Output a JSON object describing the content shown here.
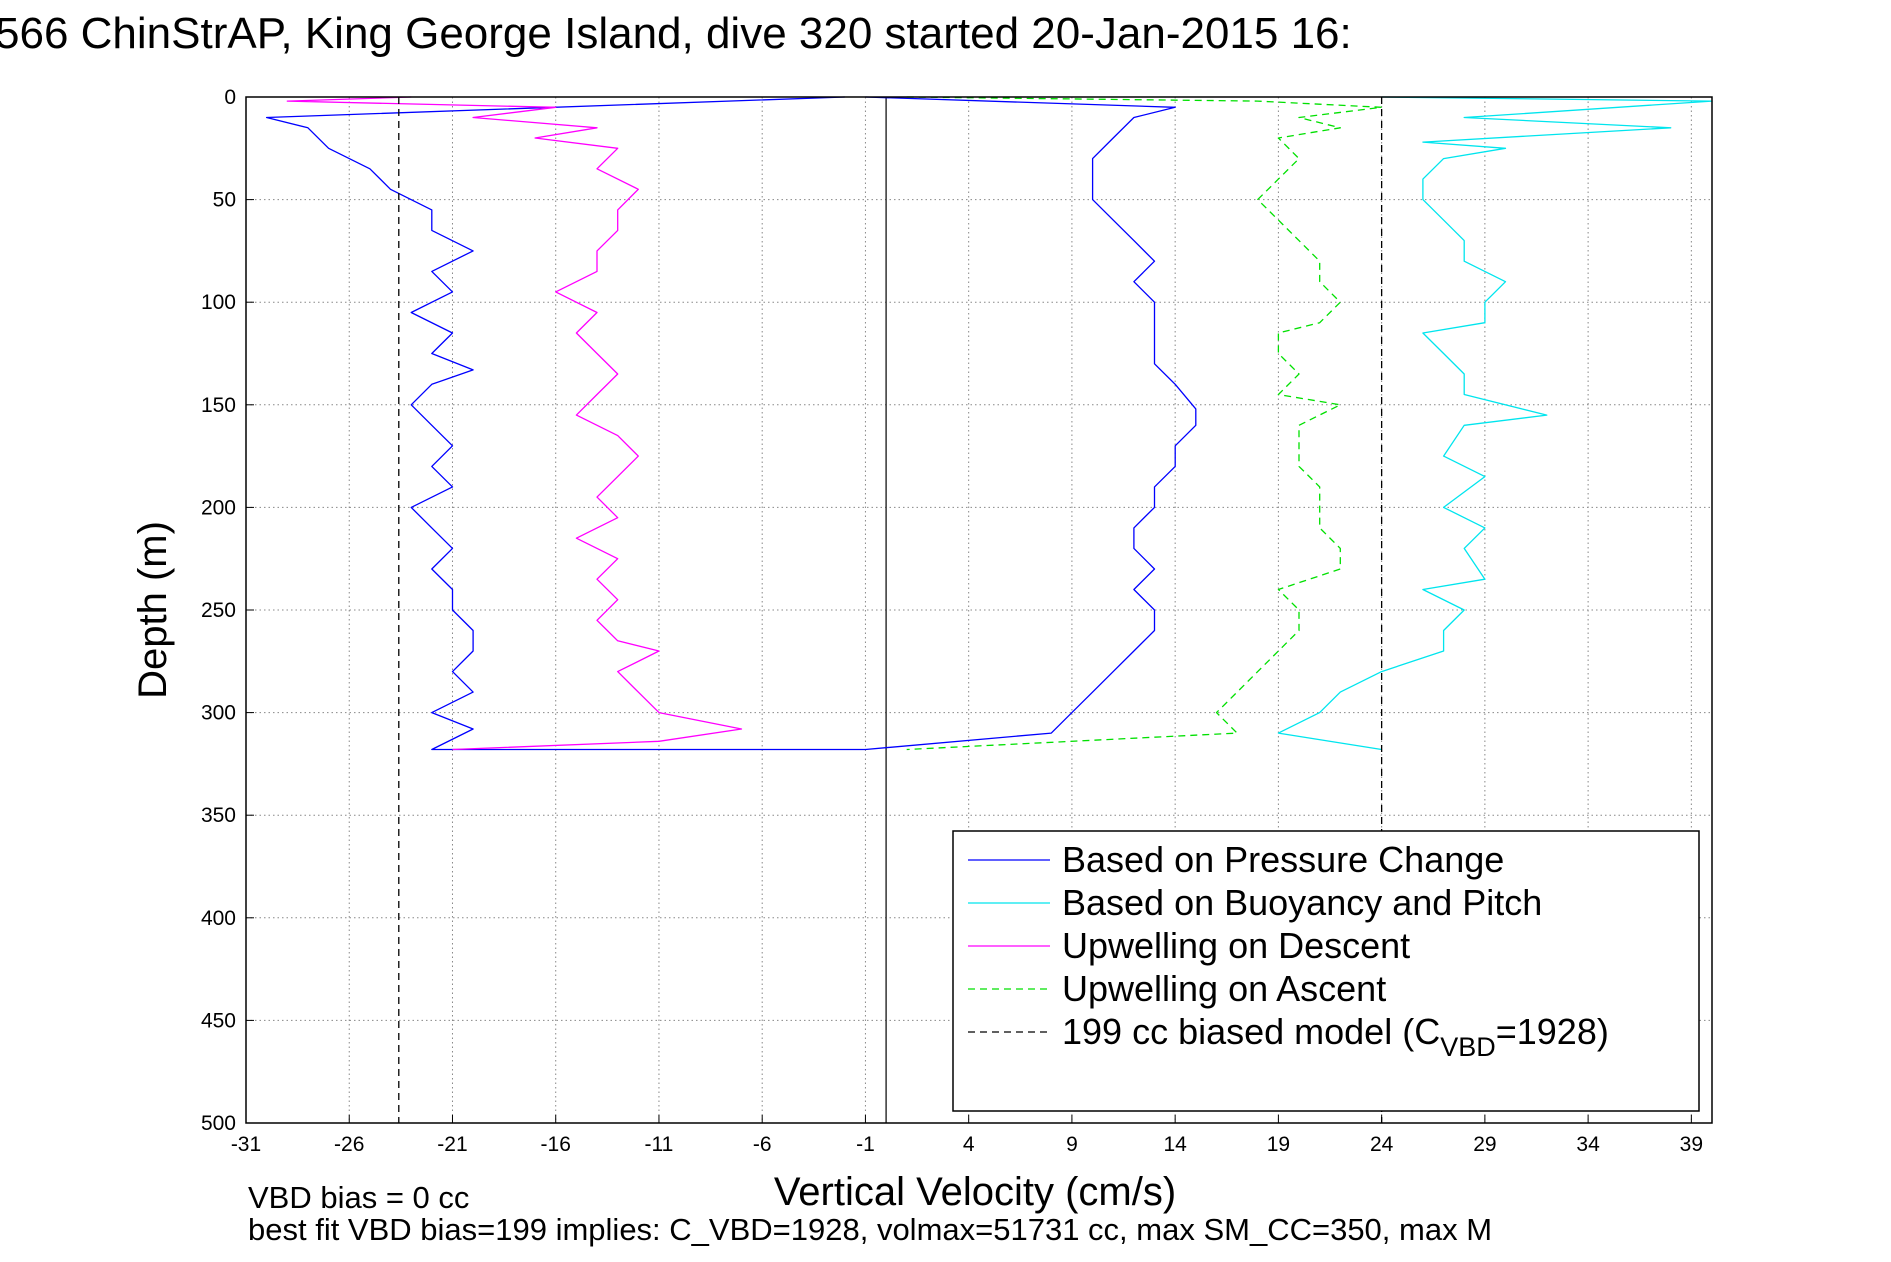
{
  "chart_data": {
    "type": "line",
    "title": "566 ChinStrAP, King George Island, dive 320 started 20-Jan-2015 16:",
    "xlabel": "Vertical Velocity (cm/s)",
    "ylabel": "Depth (m)",
    "xlim": [
      -31,
      40
    ],
    "ylim": [
      0,
      500
    ],
    "y_reversed": true,
    "xticks": [
      -31,
      -26,
      -21,
      -16,
      -11,
      -6,
      -1,
      4,
      9,
      14,
      19,
      24,
      29,
      34,
      39
    ],
    "yticks": [
      0,
      50,
      100,
      150,
      200,
      250,
      300,
      350,
      400,
      450,
      500
    ],
    "grid": true,
    "legend_position": "lower-right",
    "zero_line_x": 0,
    "series": [
      {
        "name": "Based on Pressure Change",
        "color": "#0000ff",
        "style": "solid",
        "points": [
          [
            -2,
            0
          ],
          [
            -30,
            10
          ],
          [
            -28,
            15
          ],
          [
            -27,
            25
          ],
          [
            -25,
            35
          ],
          [
            -24,
            45
          ],
          [
            -22,
            55
          ],
          [
            -22,
            65
          ],
          [
            -20,
            75
          ],
          [
            -22,
            85
          ],
          [
            -21,
            95
          ],
          [
            -23,
            105
          ],
          [
            -21,
            115
          ],
          [
            -22,
            125
          ],
          [
            -20,
            133
          ],
          [
            -22,
            140
          ],
          [
            -23,
            150
          ],
          [
            -22,
            160
          ],
          [
            -21,
            170
          ],
          [
            -22,
            180
          ],
          [
            -21,
            190
          ],
          [
            -23,
            200
          ],
          [
            -22,
            210
          ],
          [
            -21,
            220
          ],
          [
            -22,
            230
          ],
          [
            -21,
            240
          ],
          [
            -21,
            250
          ],
          [
            -20,
            260
          ],
          [
            -20,
            270
          ],
          [
            -21,
            280
          ],
          [
            -20,
            290
          ],
          [
            -22,
            300
          ],
          [
            -20,
            308
          ],
          [
            -22,
            318
          ],
          [
            -1,
            318
          ],
          [
            8,
            310
          ],
          [
            9,
            300
          ],
          [
            10,
            290
          ],
          [
            11,
            280
          ],
          [
            12,
            270
          ],
          [
            13,
            260
          ],
          [
            13,
            250
          ],
          [
            12,
            240
          ],
          [
            13,
            230
          ],
          [
            12,
            220
          ],
          [
            12,
            210
          ],
          [
            13,
            200
          ],
          [
            13,
            190
          ],
          [
            14,
            180
          ],
          [
            14,
            170
          ],
          [
            15,
            160
          ],
          [
            15,
            152
          ],
          [
            14,
            140
          ],
          [
            13,
            130
          ],
          [
            13,
            120
          ],
          [
            13,
            110
          ],
          [
            13,
            100
          ],
          [
            12,
            90
          ],
          [
            13,
            80
          ],
          [
            12,
            70
          ],
          [
            11,
            60
          ],
          [
            10,
            50
          ],
          [
            10,
            40
          ],
          [
            10,
            30
          ],
          [
            11,
            20
          ],
          [
            12,
            10
          ],
          [
            14,
            5
          ],
          [
            -1,
            0
          ]
        ]
      },
      {
        "name": "Based on Buoyancy and Pitch",
        "color": "#00e5ee",
        "style": "solid",
        "points": [
          [
            24,
            0
          ],
          [
            40,
            2
          ],
          [
            28,
            10
          ],
          [
            38,
            15
          ],
          [
            26,
            22
          ],
          [
            30,
            25
          ],
          [
            27,
            30
          ],
          [
            26,
            40
          ],
          [
            26,
            50
          ],
          [
            27,
            60
          ],
          [
            28,
            70
          ],
          [
            28,
            80
          ],
          [
            30,
            90
          ],
          [
            29,
            100
          ],
          [
            29,
            110
          ],
          [
            26,
            115
          ],
          [
            27,
            125
          ],
          [
            28,
            135
          ],
          [
            28,
            145
          ],
          [
            32,
            155
          ],
          [
            28,
            160
          ],
          [
            27,
            175
          ],
          [
            29,
            185
          ],
          [
            27,
            200
          ],
          [
            29,
            210
          ],
          [
            28,
            220
          ],
          [
            29,
            235
          ],
          [
            26,
            240
          ],
          [
            28,
            250
          ],
          [
            27,
            260
          ],
          [
            27,
            270
          ],
          [
            24,
            280
          ],
          [
            22,
            290
          ],
          [
            21,
            300
          ],
          [
            19,
            310
          ],
          [
            24,
            318
          ]
        ]
      },
      {
        "name": "Upwelling on Descent",
        "color": "#ff00ff",
        "style": "solid",
        "points": [
          [
            -23,
            0
          ],
          [
            -29,
            2
          ],
          [
            -16,
            5
          ],
          [
            -20,
            10
          ],
          [
            -14,
            15
          ],
          [
            -17,
            20
          ],
          [
            -13,
            25
          ],
          [
            -14,
            35
          ],
          [
            -12,
            45
          ],
          [
            -13,
            55
          ],
          [
            -13,
            65
          ],
          [
            -14,
            75
          ],
          [
            -14,
            85
          ],
          [
            -16,
            95
          ],
          [
            -14,
            105
          ],
          [
            -15,
            115
          ],
          [
            -14,
            125
          ],
          [
            -13,
            135
          ],
          [
            -14,
            145
          ],
          [
            -15,
            155
          ],
          [
            -13,
            165
          ],
          [
            -12,
            175
          ],
          [
            -13,
            185
          ],
          [
            -14,
            195
          ],
          [
            -13,
            205
          ],
          [
            -15,
            215
          ],
          [
            -13,
            225
          ],
          [
            -14,
            235
          ],
          [
            -13,
            245
          ],
          [
            -14,
            255
          ],
          [
            -13,
            265
          ],
          [
            -11,
            270
          ],
          [
            -13,
            280
          ],
          [
            -12,
            290
          ],
          [
            -11,
            300
          ],
          [
            -7,
            308
          ],
          [
            -11,
            314
          ],
          [
            -21,
            318
          ]
        ]
      },
      {
        "name": "Upwelling on Ascent",
        "color": "#00e000",
        "style": "dashed",
        "points": [
          [
            1,
            0
          ],
          [
            18,
            2
          ],
          [
            24,
            5
          ],
          [
            20,
            10
          ],
          [
            22,
            15
          ],
          [
            19,
            20
          ],
          [
            20,
            30
          ],
          [
            19,
            40
          ],
          [
            18,
            50
          ],
          [
            19,
            60
          ],
          [
            20,
            70
          ],
          [
            21,
            80
          ],
          [
            21,
            90
          ],
          [
            22,
            100
          ],
          [
            21,
            110
          ],
          [
            19,
            115
          ],
          [
            19,
            125
          ],
          [
            20,
            135
          ],
          [
            19,
            145
          ],
          [
            22,
            150
          ],
          [
            20,
            160
          ],
          [
            20,
            170
          ],
          [
            20,
            180
          ],
          [
            21,
            190
          ],
          [
            21,
            200
          ],
          [
            21,
            210
          ],
          [
            22,
            220
          ],
          [
            22,
            230
          ],
          [
            19,
            240
          ],
          [
            20,
            250
          ],
          [
            20,
            260
          ],
          [
            19,
            270
          ],
          [
            18,
            280
          ],
          [
            17,
            290
          ],
          [
            16,
            300
          ],
          [
            17,
            310
          ],
          [
            1,
            318
          ]
        ]
      },
      {
        "name": "199 cc biased model (C<sub>VBD</sub>=1928)",
        "legend_parts": [
          "199 cc biased model (C",
          "VBD",
          "=1928)"
        ],
        "color": "#000000",
        "style": "dashed",
        "vertical_lines_x": [
          -23.6,
          24
        ]
      }
    ]
  },
  "footer": {
    "line1": "VBD bias = 0 cc",
    "line2": "best fit VBD bias=199 implies: C_VBD=1928, volmax=51731 cc, max SM_CC=350, max M"
  }
}
